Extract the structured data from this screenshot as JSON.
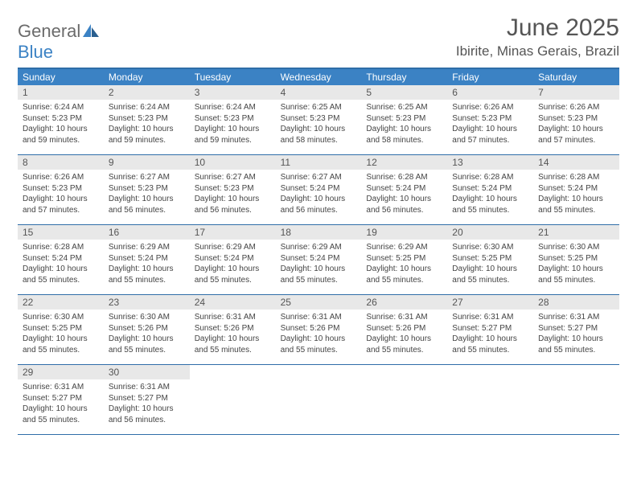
{
  "logo": {
    "part1": "General",
    "part2": "Blue"
  },
  "title": "June 2025",
  "location": "Ibirite, Minas Gerais, Brazil",
  "colors": {
    "header_bg": "#3b82c4",
    "header_text": "#ffffff",
    "day_num_bg": "#e8e8e8",
    "border": "#2f6da8",
    "logo_gray": "#6b6b6b",
    "logo_blue": "#3b82c4"
  },
  "weekdays": [
    "Sunday",
    "Monday",
    "Tuesday",
    "Wednesday",
    "Thursday",
    "Friday",
    "Saturday"
  ],
  "weeks": [
    [
      {
        "n": "1",
        "sr": "Sunrise: 6:24 AM",
        "ss": "Sunset: 5:23 PM",
        "dl": "Daylight: 10 hours and 59 minutes."
      },
      {
        "n": "2",
        "sr": "Sunrise: 6:24 AM",
        "ss": "Sunset: 5:23 PM",
        "dl": "Daylight: 10 hours and 59 minutes."
      },
      {
        "n": "3",
        "sr": "Sunrise: 6:24 AM",
        "ss": "Sunset: 5:23 PM",
        "dl": "Daylight: 10 hours and 59 minutes."
      },
      {
        "n": "4",
        "sr": "Sunrise: 6:25 AM",
        "ss": "Sunset: 5:23 PM",
        "dl": "Daylight: 10 hours and 58 minutes."
      },
      {
        "n": "5",
        "sr": "Sunrise: 6:25 AM",
        "ss": "Sunset: 5:23 PM",
        "dl": "Daylight: 10 hours and 58 minutes."
      },
      {
        "n": "6",
        "sr": "Sunrise: 6:26 AM",
        "ss": "Sunset: 5:23 PM",
        "dl": "Daylight: 10 hours and 57 minutes."
      },
      {
        "n": "7",
        "sr": "Sunrise: 6:26 AM",
        "ss": "Sunset: 5:23 PM",
        "dl": "Daylight: 10 hours and 57 minutes."
      }
    ],
    [
      {
        "n": "8",
        "sr": "Sunrise: 6:26 AM",
        "ss": "Sunset: 5:23 PM",
        "dl": "Daylight: 10 hours and 57 minutes."
      },
      {
        "n": "9",
        "sr": "Sunrise: 6:27 AM",
        "ss": "Sunset: 5:23 PM",
        "dl": "Daylight: 10 hours and 56 minutes."
      },
      {
        "n": "10",
        "sr": "Sunrise: 6:27 AM",
        "ss": "Sunset: 5:23 PM",
        "dl": "Daylight: 10 hours and 56 minutes."
      },
      {
        "n": "11",
        "sr": "Sunrise: 6:27 AM",
        "ss": "Sunset: 5:24 PM",
        "dl": "Daylight: 10 hours and 56 minutes."
      },
      {
        "n": "12",
        "sr": "Sunrise: 6:28 AM",
        "ss": "Sunset: 5:24 PM",
        "dl": "Daylight: 10 hours and 56 minutes."
      },
      {
        "n": "13",
        "sr": "Sunrise: 6:28 AM",
        "ss": "Sunset: 5:24 PM",
        "dl": "Daylight: 10 hours and 55 minutes."
      },
      {
        "n": "14",
        "sr": "Sunrise: 6:28 AM",
        "ss": "Sunset: 5:24 PM",
        "dl": "Daylight: 10 hours and 55 minutes."
      }
    ],
    [
      {
        "n": "15",
        "sr": "Sunrise: 6:28 AM",
        "ss": "Sunset: 5:24 PM",
        "dl": "Daylight: 10 hours and 55 minutes."
      },
      {
        "n": "16",
        "sr": "Sunrise: 6:29 AM",
        "ss": "Sunset: 5:24 PM",
        "dl": "Daylight: 10 hours and 55 minutes."
      },
      {
        "n": "17",
        "sr": "Sunrise: 6:29 AM",
        "ss": "Sunset: 5:24 PM",
        "dl": "Daylight: 10 hours and 55 minutes."
      },
      {
        "n": "18",
        "sr": "Sunrise: 6:29 AM",
        "ss": "Sunset: 5:24 PM",
        "dl": "Daylight: 10 hours and 55 minutes."
      },
      {
        "n": "19",
        "sr": "Sunrise: 6:29 AM",
        "ss": "Sunset: 5:25 PM",
        "dl": "Daylight: 10 hours and 55 minutes."
      },
      {
        "n": "20",
        "sr": "Sunrise: 6:30 AM",
        "ss": "Sunset: 5:25 PM",
        "dl": "Daylight: 10 hours and 55 minutes."
      },
      {
        "n": "21",
        "sr": "Sunrise: 6:30 AM",
        "ss": "Sunset: 5:25 PM",
        "dl": "Daylight: 10 hours and 55 minutes."
      }
    ],
    [
      {
        "n": "22",
        "sr": "Sunrise: 6:30 AM",
        "ss": "Sunset: 5:25 PM",
        "dl": "Daylight: 10 hours and 55 minutes."
      },
      {
        "n": "23",
        "sr": "Sunrise: 6:30 AM",
        "ss": "Sunset: 5:26 PM",
        "dl": "Daylight: 10 hours and 55 minutes."
      },
      {
        "n": "24",
        "sr": "Sunrise: 6:31 AM",
        "ss": "Sunset: 5:26 PM",
        "dl": "Daylight: 10 hours and 55 minutes."
      },
      {
        "n": "25",
        "sr": "Sunrise: 6:31 AM",
        "ss": "Sunset: 5:26 PM",
        "dl": "Daylight: 10 hours and 55 minutes."
      },
      {
        "n": "26",
        "sr": "Sunrise: 6:31 AM",
        "ss": "Sunset: 5:26 PM",
        "dl": "Daylight: 10 hours and 55 minutes."
      },
      {
        "n": "27",
        "sr": "Sunrise: 6:31 AM",
        "ss": "Sunset: 5:27 PM",
        "dl": "Daylight: 10 hours and 55 minutes."
      },
      {
        "n": "28",
        "sr": "Sunrise: 6:31 AM",
        "ss": "Sunset: 5:27 PM",
        "dl": "Daylight: 10 hours and 55 minutes."
      }
    ],
    [
      {
        "n": "29",
        "sr": "Sunrise: 6:31 AM",
        "ss": "Sunset: 5:27 PM",
        "dl": "Daylight: 10 hours and 55 minutes."
      },
      {
        "n": "30",
        "sr": "Sunrise: 6:31 AM",
        "ss": "Sunset: 5:27 PM",
        "dl": "Daylight: 10 hours and 56 minutes."
      },
      null,
      null,
      null,
      null,
      null
    ]
  ]
}
